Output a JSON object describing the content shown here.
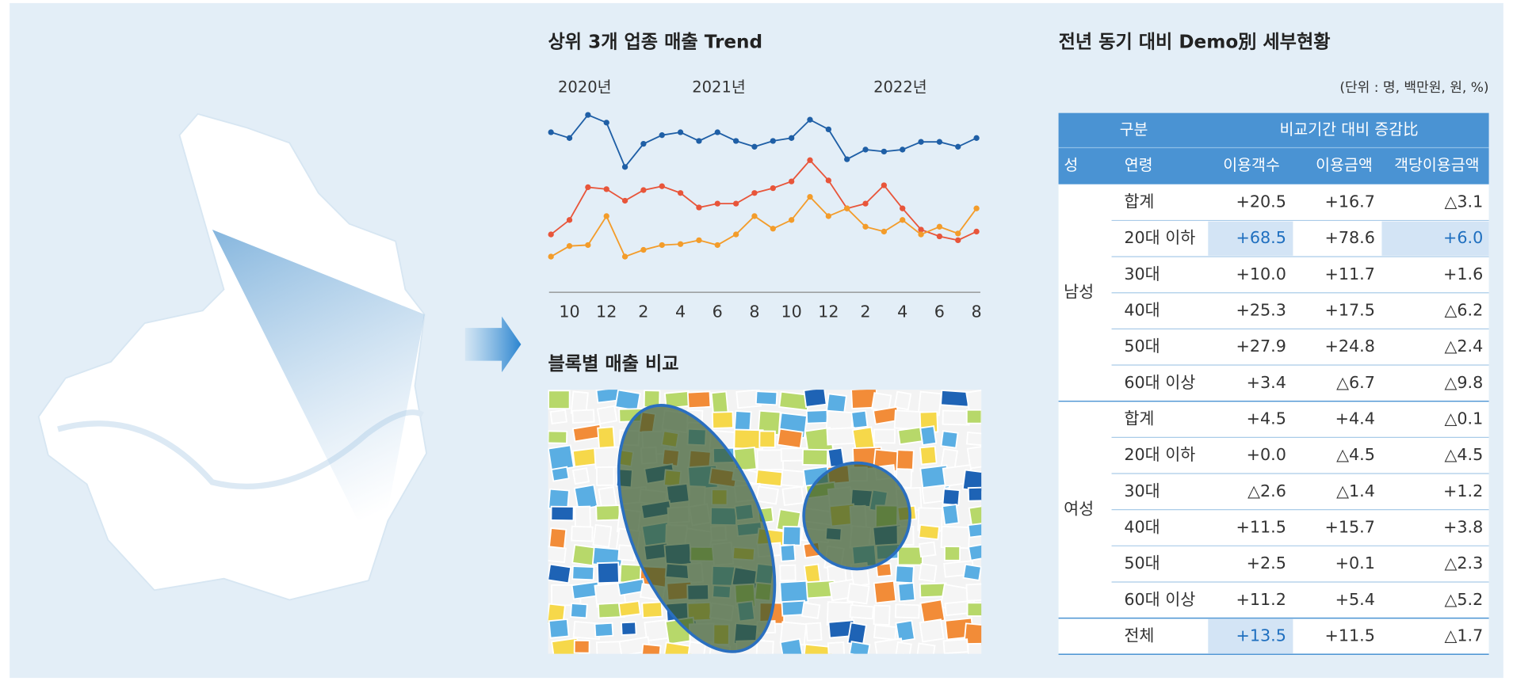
{
  "chart_data": {
    "type": "line",
    "title": "상위 3개 업종 매출 Trend",
    "annotations": [
      "2020년",
      "2021년",
      "2022년"
    ],
    "categories": [
      null,
      "10",
      null,
      "12",
      null,
      "2",
      null,
      "4",
      null,
      "6",
      null,
      "8",
      null,
      "10",
      null,
      "12",
      null,
      "2",
      null,
      "4",
      null,
      "6",
      null,
      "8"
    ],
    "series": [
      {
        "color": "#1f5fa6",
        "values": [
          163,
          157,
          181,
          173,
          127,
          151,
          160,
          163,
          154,
          163,
          154,
          148,
          154,
          157,
          176,
          166,
          135,
          145,
          143,
          145,
          153,
          153,
          148,
          157
        ]
      },
      {
        "color": "#e8553a",
        "values": [
          57,
          72,
          106,
          104,
          92,
          103,
          107,
          100,
          85,
          89,
          89,
          100,
          105,
          112,
          134,
          113,
          84,
          89,
          108,
          84,
          62,
          55,
          51,
          60
        ]
      },
      {
        "color": "#f39c2a",
        "values": [
          34,
          45,
          46,
          76,
          34,
          41,
          46,
          47,
          51,
          46,
          57,
          76,
          63,
          72,
          96,
          76,
          84,
          65,
          60,
          72,
          57,
          65,
          58,
          84
        ]
      }
    ]
  },
  "block_map": {
    "title": "블록별 매출 비교"
  },
  "table": {
    "title": "전년 동기 대비 Demo別 세부현황",
    "unit": "(단위 : 명, 백만원, 원, %)",
    "header": [
      "구분",
      "비교기간 대비 증감比"
    ],
    "columns": [
      "성",
      "연령",
      "이용객수",
      "이용금액",
      "객당이용금액"
    ],
    "groups": [
      {
        "name": "남성",
        "rows": [
          {
            "age": "합계",
            "cells": [
              "+20.5",
              "+16.7",
              "△3.1"
            ]
          },
          {
            "age": "20대 이하",
            "cells": [
              {
                "text": "+68.5",
                "highlight": true
              },
              "+78.6",
              {
                "text": "+6.0",
                "highlight": true
              }
            ]
          },
          {
            "age": "30대",
            "cells": [
              "+10.0",
              "+11.7",
              "+1.6"
            ]
          },
          {
            "age": "40대",
            "cells": [
              "+25.3",
              "+17.5",
              "△6.2"
            ]
          },
          {
            "age": "50대",
            "cells": [
              "+27.9",
              "+24.8",
              "△2.4"
            ]
          },
          {
            "age": "60대 이상",
            "cells": [
              "+3.4",
              "△6.7",
              "△9.8"
            ]
          }
        ]
      },
      {
        "name": "여성",
        "rows": [
          {
            "age": "합계",
            "cells": [
              "+4.5",
              "+4.4",
              "△0.1"
            ]
          },
          {
            "age": "20대 이하",
            "cells": [
              "+0.0",
              "△4.5",
              "△4.5"
            ]
          },
          {
            "age": "30대",
            "cells": [
              "△2.6",
              "△1.4",
              "+1.2"
            ]
          },
          {
            "age": "40대",
            "cells": [
              "+11.5",
              "+15.7",
              "+3.8"
            ]
          },
          {
            "age": "50대",
            "cells": [
              "+2.5",
              "+0.1",
              "△2.3"
            ]
          },
          {
            "age": "60대 이상",
            "cells": [
              "+11.2",
              "+5.4",
              "△5.2"
            ]
          }
        ]
      }
    ],
    "total": {
      "label": "전체",
      "cells": [
        {
          "text": "+13.5",
          "highlight": true
        },
        "+11.5",
        "△1.7"
      ]
    }
  }
}
